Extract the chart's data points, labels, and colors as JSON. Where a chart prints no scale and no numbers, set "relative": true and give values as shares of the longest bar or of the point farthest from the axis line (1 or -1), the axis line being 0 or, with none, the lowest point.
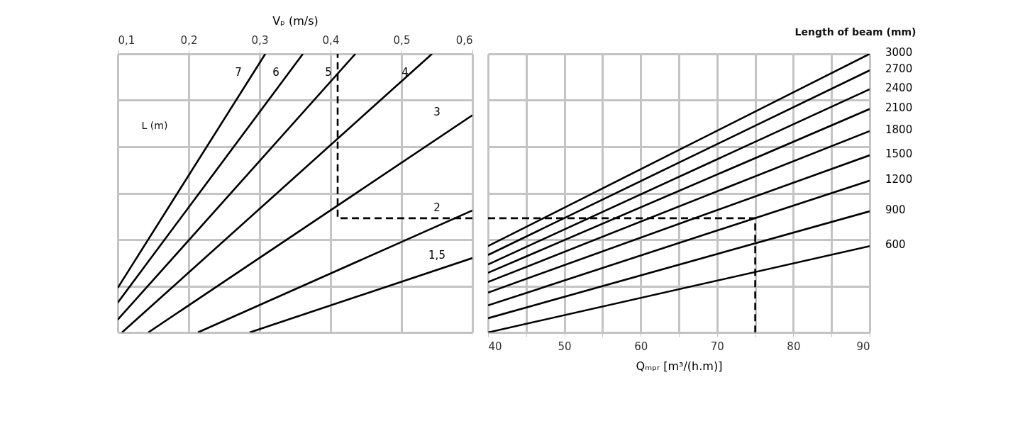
{
  "chart_data": [
    {
      "type": "line",
      "relative": true,
      "grid": true,
      "legend": false,
      "legend_title": "L (m)",
      "xlabel": "Vₚ (m/s)",
      "xlim": [
        0.1,
        0.6
      ],
      "xticks": [
        {
          "value": 0.1,
          "label": "0,1"
        },
        {
          "value": 0.2,
          "label": "0,2"
        },
        {
          "value": 0.3,
          "label": "0,3"
        },
        {
          "value": 0.4,
          "label": "0,4"
        },
        {
          "value": 0.5,
          "label": "0,5"
        },
        {
          "value": 0.6,
          "label": "0,6"
        }
      ],
      "series": [
        {
          "name": "7",
          "color": "#000000",
          "x": [
            0.1,
            0.308
          ],
          "values": [
            0.16,
            1
          ]
        },
        {
          "name": "6",
          "color": "#000000",
          "x": [
            0.1,
            0.361
          ],
          "values": [
            0.107,
            1
          ]
        },
        {
          "name": "5",
          "color": "#000000",
          "x": [
            0.1,
            0.435
          ],
          "values": [
            0.046,
            1
          ]
        },
        {
          "name": "4",
          "color": "#000000",
          "x": [
            0.106,
            0.543
          ],
          "values": [
            0,
            1
          ]
        },
        {
          "name": "3",
          "color": "#000000",
          "x": [
            0.143,
            0.6
          ],
          "values": [
            0,
            0.78
          ]
        },
        {
          "name": "2",
          "color": "#000000",
          "x": [
            0.213,
            0.6
          ],
          "values": [
            0,
            0.438
          ]
        },
        {
          "name": "1,5",
          "color": "#000000",
          "x": [
            0.286,
            0.6
          ],
          "values": [
            0,
            0.267
          ]
        },
        {
          "color": "#000000",
          "line_style": "dashed",
          "x": [
            0.6,
            0.41,
            0.41
          ],
          "values": [
            0.41,
            0.41,
            1
          ]
        }
      ]
    },
    {
      "type": "line",
      "relative": true,
      "grid": true,
      "legend": "right",
      "legend_title": "Length of beam (mm)",
      "xlabel": "Qₘₚᵣ [m³/(h.m)]",
      "xlim": [
        40,
        90
      ],
      "xticks": [
        40,
        {
          "value": 45,
          "label": null
        },
        50,
        {
          "value": 55,
          "label": null
        },
        60,
        {
          "value": 65,
          "label": null
        },
        70,
        {
          "value": 75,
          "label": null
        },
        80,
        {
          "value": 85,
          "label": null
        },
        90
      ],
      "series": [
        {
          "name": "3000",
          "color": "#000000",
          "x": [
            40,
            90
          ],
          "values": [
            0.31,
            1
          ]
        },
        {
          "name": "2700",
          "color": "#000000",
          "x": [
            40,
            90
          ],
          "values": [
            0.278,
            0.941
          ]
        },
        {
          "name": "2400",
          "color": "#000000",
          "x": [
            40,
            90
          ],
          "values": [
            0.244,
            0.873
          ]
        },
        {
          "name": "2100",
          "color": "#000000",
          "x": [
            40,
            90
          ],
          "values": [
            0.214,
            0.802
          ]
        },
        {
          "name": "1800",
          "color": "#000000",
          "x": [
            40,
            90
          ],
          "values": [
            0.181,
            0.723
          ]
        },
        {
          "name": "1500",
          "color": "#000000",
          "x": [
            40,
            90
          ],
          "values": [
            0.143,
            0.636
          ]
        },
        {
          "name": "1200",
          "color": "#000000",
          "x": [
            40,
            90
          ],
          "values": [
            0.097,
            0.545
          ]
        },
        {
          "name": "900",
          "color": "#000000",
          "x": [
            40,
            90
          ],
          "values": [
            0.051,
            0.435
          ]
        },
        {
          "name": "600",
          "color": "#000000",
          "x": [
            40,
            90
          ],
          "values": [
            0,
            0.31
          ]
        },
        {
          "color": "#000000",
          "line_style": "dashed",
          "x": [
            40,
            75,
            75
          ],
          "values": [
            0.41,
            0.41,
            0
          ]
        }
      ]
    }
  ]
}
